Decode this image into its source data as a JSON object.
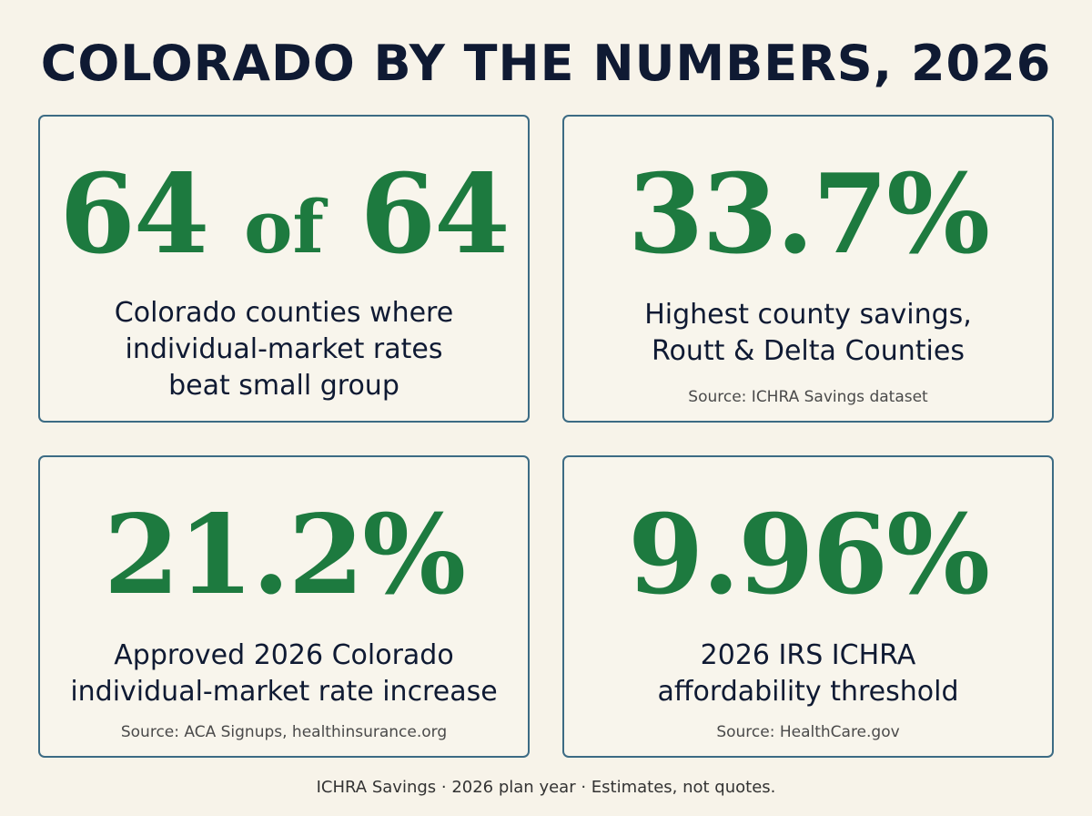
{
  "title": "COLORADO BY THE NUMBERS, 2026",
  "colors": {
    "background": "#f7f3e9",
    "card_border": "#3c6b84",
    "stat_green": "#1d7a3f",
    "text_dark": "#0f1a33"
  },
  "cards": [
    {
      "stat_part1": "64",
      "stat_part2": "of",
      "stat_part3": "64",
      "description_lines": [
        "Colorado counties where",
        "individual-market rates",
        "beat small group"
      ],
      "source": ""
    },
    {
      "stat": "33.7%",
      "description_lines": [
        "Highest county savings,",
        "Routt & Delta Counties"
      ],
      "source": "Source: ICHRA Savings dataset"
    },
    {
      "stat": "21.2%",
      "description_lines": [
        "Approved 2026 Colorado",
        "individual-market rate increase"
      ],
      "source": "Source: ACA Signups, healthinsurance.org"
    },
    {
      "stat": "9.96%",
      "description_lines": [
        "2026 IRS ICHRA",
        "affordability threshold"
      ],
      "source": "Source: HealthCare.gov"
    }
  ],
  "footer": "ICHRA Savings · 2026 plan year · Estimates, not quotes."
}
